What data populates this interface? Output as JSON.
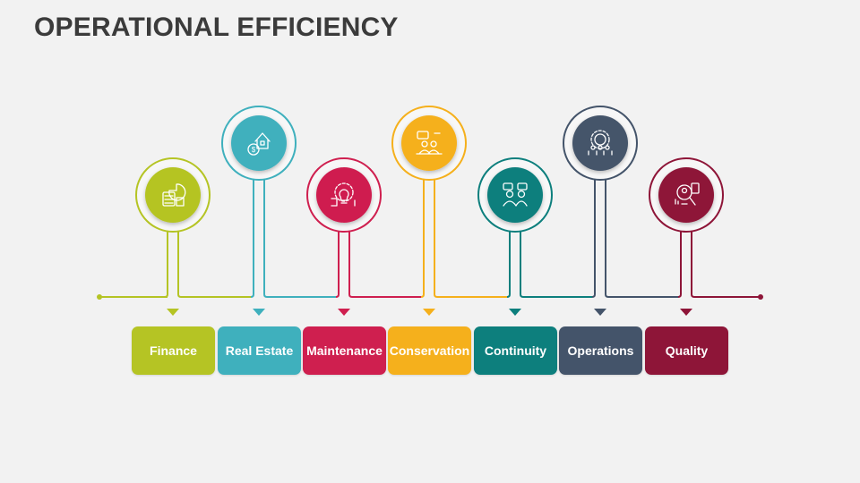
{
  "title": "OPERATIONAL EFFICIENCY",
  "items": [
    {
      "label": "Finance",
      "color": "#b5c424",
      "icon": "calculator-chart-icon"
    },
    {
      "label": "Real Estate",
      "color": "#3fb0bd",
      "icon": "house-money-icon"
    },
    {
      "label": "Maintenance",
      "color": "#cf1f4f",
      "icon": "gear-lightbulb-icon"
    },
    {
      "label": "Conservation",
      "color": "#f5b01c",
      "icon": "meeting-chat-icon"
    },
    {
      "label": "Continuity",
      "color": "#0d7f7d",
      "icon": "team-chat-icon"
    },
    {
      "label": "Operations",
      "color": "#44546a",
      "icon": "gear-people-icon"
    },
    {
      "label": "Quality",
      "color": "#8e1538",
      "icon": "magnifier-report-icon"
    }
  ]
}
